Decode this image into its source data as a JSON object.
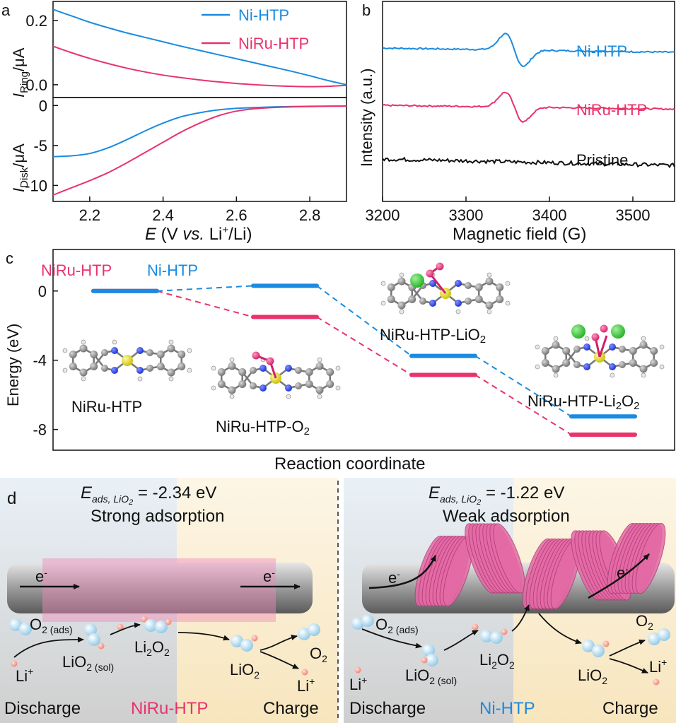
{
  "colors": {
    "ni": "#1a8be0",
    "niru": "#e8336b",
    "pristine": "#111111"
  },
  "panels": {
    "a": "a",
    "b": "b",
    "c": "c",
    "d": "d"
  },
  "chart_data": [
    {
      "panel": "a-top",
      "type": "line",
      "ylabel_main": "I",
      "ylabel_sub": "Ring",
      "ylabel_unit": "/μA",
      "ylim": [
        -0.04,
        0.26
      ],
      "xlim": [
        2.1,
        2.9
      ],
      "yticks": [
        "0.2",
        "0.0"
      ],
      "ytick_values": [
        0.2,
        0.0
      ],
      "series": [
        {
          "name": "Ni-HTP",
          "color": "ni",
          "x": [
            2.1,
            2.15,
            2.2,
            2.25,
            2.3,
            2.35,
            2.4,
            2.45,
            2.5,
            2.55,
            2.6,
            2.65,
            2.7,
            2.75,
            2.8,
            2.85,
            2.9
          ],
          "y": [
            0.235,
            0.215,
            0.195,
            0.178,
            0.162,
            0.148,
            0.134,
            0.12,
            0.107,
            0.094,
            0.081,
            0.068,
            0.055,
            0.042,
            0.028,
            0.013,
            0.0
          ]
        },
        {
          "name": "NiRu-HTP",
          "color": "niru",
          "x": [
            2.1,
            2.15,
            2.2,
            2.25,
            2.3,
            2.35,
            2.4,
            2.45,
            2.5,
            2.55,
            2.6,
            2.65,
            2.7,
            2.75,
            2.8,
            2.85,
            2.9
          ],
          "y": [
            0.12,
            0.1,
            0.082,
            0.066,
            0.052,
            0.04,
            0.03,
            0.022,
            0.015,
            0.009,
            0.004,
            0.0,
            -0.003,
            -0.005,
            -0.006,
            -0.005,
            -0.002
          ]
        }
      ]
    },
    {
      "panel": "a-bottom",
      "type": "line",
      "ylabel_main": "I",
      "ylabel_sub": "Disk",
      "ylabel_unit": "/μA",
      "xlabel_main": "E",
      "xlabel_rest": " (V ",
      "xlabel_vs": "vs.",
      "xlabel_tail": " Li",
      "xlabel_sup": "+",
      "xlabel_end": "/Li)",
      "ylim": [
        -12,
        1
      ],
      "xlim": [
        2.1,
        2.9
      ],
      "yticks": [
        "0",
        "-5",
        "-10"
      ],
      "ytick_values": [
        0,
        -5,
        -10
      ],
      "xticks": [
        "2.2",
        "2.4",
        "2.6",
        "2.8"
      ],
      "xtick_values": [
        2.2,
        2.4,
        2.6,
        2.8
      ],
      "series": [
        {
          "name": "Ni-HTP",
          "color": "ni",
          "x": [
            2.1,
            2.15,
            2.2,
            2.25,
            2.3,
            2.35,
            2.4,
            2.45,
            2.5,
            2.55,
            2.6,
            2.65,
            2.7,
            2.75,
            2.8,
            2.85,
            2.9
          ],
          "y": [
            -6.4,
            -6.3,
            -6.0,
            -5.3,
            -4.3,
            -3.2,
            -2.2,
            -1.4,
            -0.9,
            -0.55,
            -0.35,
            -0.25,
            -0.18,
            -0.13,
            -0.1,
            -0.08,
            -0.06
          ]
        },
        {
          "name": "NiRu-HTP",
          "color": "niru",
          "x": [
            2.1,
            2.15,
            2.2,
            2.25,
            2.3,
            2.35,
            2.4,
            2.45,
            2.5,
            2.55,
            2.6,
            2.65,
            2.7,
            2.75,
            2.8,
            2.85,
            2.9
          ],
          "y": [
            -11.2,
            -10.3,
            -9.4,
            -8.4,
            -7.2,
            -5.9,
            -4.6,
            -3.3,
            -2.2,
            -1.3,
            -0.7,
            -0.4,
            -0.25,
            -0.17,
            -0.12,
            -0.09,
            -0.07
          ]
        }
      ]
    },
    {
      "panel": "b",
      "type": "line",
      "ylabel": "Intensity (a.u.)",
      "xlabel": "Magnetic field (G)",
      "xlim": [
        3200,
        3550
      ],
      "xticks": [
        "3200",
        "3300",
        "3400",
        "3500"
      ],
      "xtick_values": [
        3200,
        3300,
        3400,
        3500
      ],
      "series": [
        {
          "name": "Ni-HTP",
          "color": "ni",
          "baseline_left": 0.82,
          "baseline_right": 0.72,
          "peak_up": 0.07,
          "peak_down": 0.62
        },
        {
          "name": "NiRu-HTP",
          "color": "niru",
          "baseline_left": 0.42,
          "baseline_right": 0.33,
          "peak_up": 0.18,
          "peak_down": 0.45
        },
        {
          "name": "Pristine",
          "color": "pristine",
          "baseline_left": 0.0,
          "baseline_right": -0.15
        }
      ]
    },
    {
      "panel": "c",
      "type": "line",
      "ylabel": "Energy (eV)",
      "xlabel": "Reaction coordinate",
      "ylim": [
        -9.2,
        2.4
      ],
      "yticks": [
        "0",
        "-4",
        "-8"
      ],
      "ytick_values": [
        0,
        -4,
        -8
      ],
      "steps": [
        "NiRu-HTP",
        "NiRu-HTP-O2",
        "NiRu-HTP-LiO2",
        "NiRu-HTP-Li2O2"
      ],
      "series": [
        {
          "name": "NiRu-HTP",
          "color": "niru",
          "values": [
            0,
            -1.5,
            -4.85,
            -8.3
          ]
        },
        {
          "name": "Ni-HTP",
          "color": "ni",
          "values": [
            0,
            0.3,
            -3.75,
            -7.25
          ]
        }
      ]
    }
  ],
  "panel_a": {
    "legend": [
      "Ni-HTP",
      "NiRu-HTP"
    ]
  },
  "panel_b": {
    "labels": [
      "Ni-HTP",
      "NiRu-HTP",
      "Pristine"
    ]
  },
  "panel_c": {
    "legend_niru": "NiRu-HTP",
    "legend_ni": "Ni-HTP",
    "structures": [
      {
        "main": "NiRu-HTP",
        "sub": "",
        "tail": ""
      },
      {
        "main": "NiRu-HTP-O",
        "sub": "2",
        "tail": ""
      },
      {
        "main": "NiRu-HTP-LiO",
        "sub": "2",
        "tail": ""
      },
      {
        "main": "NiRu-HTP-Li",
        "sub": "2",
        "tail": "O",
        "sub2": "2"
      }
    ]
  },
  "panel_d": {
    "left": {
      "energy_label": "E",
      "energy_sub": "ads, LiO",
      "energy_sub2": "2",
      "energy_value": " = -2.34 eV",
      "adsorption": "Strong adsorption",
      "electron": "e",
      "electron_sup": "-",
      "species": {
        "o2_ads": "O",
        "o2_ads_sub": "2 (ads)",
        "lio2_sol": "LiO",
        "lio2_sol_sub": "2 (sol)",
        "li2o2": "Li",
        "li2o2_sub": "2",
        "li2o2_tail": "O",
        "li2o2_sub2": "2",
        "lio2": "LiO",
        "lio2_sub": "2",
        "o2": "O",
        "o2_sub": "2",
        "li_plus": "Li",
        "li_plus_sup": "+"
      },
      "discharge": "Discharge",
      "material": "NiRu-HTP",
      "charge": "Charge"
    },
    "right": {
      "energy_label": "E",
      "energy_sub": "ads, LiO",
      "energy_sub2": "2",
      "energy_value": " = -1.22 eV",
      "adsorption": "Weak adsorption",
      "electron": "e",
      "electron_sup": "-",
      "species": {
        "o2_ads": "O",
        "o2_ads_sub": "2 (ads)",
        "lio2_sol": "LiO",
        "lio2_sol_sub": "2 (sol)",
        "li2o2": "Li",
        "li2o2_sub": "2",
        "li2o2_tail": "O",
        "li2o2_sub2": "2",
        "lio2": "LiO",
        "lio2_sub": "2",
        "o2": "O",
        "o2_sub": "2",
        "li_plus": "Li",
        "li_plus_sup": "+"
      },
      "discharge": "Discharge",
      "material": "Ni-HTP",
      "charge": "Charge"
    }
  }
}
